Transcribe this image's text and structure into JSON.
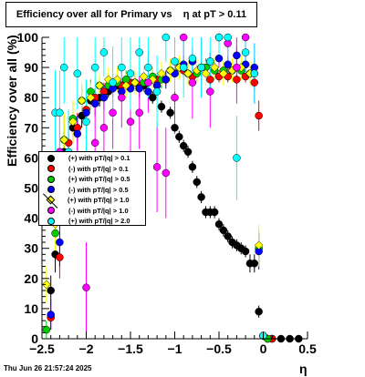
{
  "title": "Efficiency over all for Primary vs    η at pT > 0.11",
  "timestamp": "Thu Jun 26 21:57:24 2025",
  "chart_data": {
    "type": "scatter",
    "title": "Efficiency over all for Primary vs    η at pT > 0.11",
    "xlabel": "η",
    "ylabel": "Efficiency over all (%)",
    "xlim": [
      -2.5,
      0.5
    ],
    "ylim": [
      0,
      100
    ],
    "xticks": [
      "−2.5",
      "−2",
      "−1.5",
      "−1",
      "−0.5",
      "0",
      "0.5"
    ],
    "yticks": [
      "0",
      "10",
      "20",
      "30",
      "40",
      "50",
      "60",
      "70",
      "80",
      "90",
      "100"
    ],
    "legend_position": "middle-left",
    "series": [
      {
        "name": "(+) with pT/|q| > 0.1",
        "color": "#000000",
        "marker": "circle",
        "x": [
          -2.4,
          -2.35,
          -2.25,
          -2.15,
          -2.05,
          -1.95,
          -1.85,
          -1.75,
          -1.65,
          -1.55,
          -1.45,
          -1.35,
          -1.25,
          -1.15,
          -1.05,
          -1.0,
          -0.95,
          -0.9,
          -0.85,
          -0.8,
          -0.75,
          -0.7,
          -0.65,
          -0.6,
          -0.55,
          -0.5,
          -0.45,
          -0.4,
          -0.35,
          -0.3,
          -0.25,
          -0.2,
          -0.15,
          -0.1,
          -0.05,
          0.0,
          0.05,
          0.1,
          0.2,
          0.3,
          0.4
        ],
        "y": [
          16,
          28,
          62,
          70,
          74,
          79,
          80,
          82,
          84,
          85,
          85,
          84,
          80,
          77,
          75,
          70,
          67,
          64,
          62,
          57,
          52,
          47,
          42,
          42,
          42,
          38,
          36,
          34,
          32,
          31,
          30,
          29,
          25,
          25,
          9,
          1,
          0,
          0,
          0,
          0,
          0
        ],
        "err": [
          5,
          6,
          7,
          5,
          4,
          3,
          3,
          2,
          2,
          2,
          2,
          2,
          2,
          2,
          2,
          2,
          2,
          2,
          2,
          2,
          2,
          2,
          2,
          2,
          2,
          2,
          2,
          2,
          2,
          2,
          2,
          2,
          3,
          3,
          2,
          1,
          0,
          0,
          0,
          0,
          0
        ]
      },
      {
        "name": "(-) with pT/|q| > 0.1",
        "color": "#ff0000",
        "marker": "circle",
        "x": [
          -2.4,
          -2.3,
          -2.2,
          -2.1,
          -2.0,
          -1.9,
          -1.8,
          -1.7,
          -1.6,
          -1.5,
          -1.4,
          -1.3,
          -1.2,
          -1.1,
          -1.0,
          -0.9,
          -0.8,
          -0.7,
          -0.6,
          -0.5,
          -0.4,
          -0.3,
          -0.2,
          -0.1,
          -0.05,
          0.0,
          0.05,
          0.1
        ],
        "y": [
          7,
          27,
          65,
          70,
          76,
          80,
          82,
          84,
          84,
          85,
          84,
          85,
          86,
          86,
          88,
          89,
          87,
          90,
          86,
          87,
          87,
          86,
          87,
          85,
          74,
          1,
          0,
          0
        ],
        "err": [
          4,
          7,
          7,
          5,
          4,
          3,
          3,
          3,
          2,
          2,
          2,
          2,
          2,
          2,
          2,
          2,
          2,
          2,
          2,
          2,
          2,
          2,
          2,
          3,
          5,
          1,
          0,
          0
        ]
      },
      {
        "name": "(+) with pT/|q| > 0.5",
        "color": "#00cc00",
        "marker": "circle",
        "x": [
          -2.45,
          -2.35,
          -2.25,
          -2.15,
          -2.05,
          -1.95,
          -1.85,
          -1.75,
          -1.65,
          -1.55,
          -1.45,
          -1.35,
          -1.25,
          -1.15,
          -1.05,
          -0.95,
          -0.85,
          -0.75,
          -0.65,
          -0.55,
          -0.45,
          -0.35,
          -0.25,
          -0.15,
          -0.05,
          0.0,
          0.05
        ],
        "y": [
          3,
          35,
          66,
          73,
          79,
          82,
          84,
          84,
          85,
          86,
          85,
          85,
          87,
          86,
          89,
          90,
          88,
          88,
          90,
          89,
          89,
          89,
          89,
          88,
          30,
          1,
          0
        ],
        "err": [
          3,
          8,
          8,
          6,
          5,
          4,
          3,
          3,
          3,
          3,
          3,
          3,
          3,
          3,
          3,
          3,
          3,
          3,
          3,
          3,
          3,
          3,
          3,
          3,
          6,
          1,
          0
        ]
      },
      {
        "name": "(-) with pT/|q| > 0.5",
        "color": "#0000ff",
        "marker": "circle",
        "x": [
          -2.4,
          -2.3,
          -2.2,
          -2.1,
          -2.0,
          -1.9,
          -1.8,
          -1.7,
          -1.6,
          -1.5,
          -1.4,
          -1.3,
          -1.2,
          -1.1,
          -1.0,
          -0.9,
          -0.8,
          -0.7,
          -0.6,
          -0.5,
          -0.4,
          -0.3,
          -0.2,
          -0.1,
          -0.05,
          0.0
        ],
        "y": [
          8,
          32,
          60,
          68,
          75,
          78,
          80,
          83,
          82,
          83,
          83,
          82,
          84,
          86,
          88,
          91,
          92,
          90,
          92,
          93,
          91,
          94,
          91,
          90,
          29,
          1
        ],
        "err": [
          5,
          8,
          8,
          6,
          5,
          4,
          4,
          3,
          3,
          3,
          3,
          3,
          3,
          3,
          3,
          3,
          3,
          3,
          3,
          3,
          3,
          3,
          3,
          3,
          6,
          1
        ]
      },
      {
        "name": "(+) with pT/|q| > 1.0",
        "color": "#ffff00",
        "marker": "diamond",
        "x": [
          -2.45,
          -2.35,
          -2.25,
          -2.15,
          -2.05,
          -1.95,
          -1.85,
          -1.75,
          -1.65,
          -1.55,
          -1.45,
          -1.35,
          -1.25,
          -1.15,
          -1.05,
          -0.95,
          -0.85,
          -0.75,
          -0.65,
          -0.55,
          -0.45,
          -0.35,
          -0.25,
          -0.15,
          -0.05,
          0.0
        ],
        "y": [
          18,
          38,
          66,
          72,
          79,
          80,
          84,
          86,
          86,
          84,
          85,
          87,
          86,
          88,
          89,
          90,
          88,
          89,
          88,
          90,
          88,
          89,
          90,
          88,
          31,
          1
        ],
        "err": [
          6,
          9,
          9,
          7,
          6,
          5,
          4,
          4,
          4,
          4,
          4,
          4,
          4,
          4,
          4,
          4,
          4,
          4,
          4,
          4,
          4,
          4,
          4,
          4,
          7,
          1
        ]
      },
      {
        "name": "(-) with pT/|q| > 1.0",
        "color": "#ff00ff",
        "marker": "circle",
        "x": [
          -2.3,
          -2.2,
          -2.1,
          -2.0,
          -1.9,
          -1.8,
          -1.7,
          -1.6,
          -1.5,
          -1.4,
          -1.3,
          -1.2,
          -1.1,
          -1.0,
          -0.9,
          -0.8,
          -0.7,
          -0.6,
          -0.5,
          -0.4,
          -0.3,
          -0.2,
          -0.1,
          0.0
        ],
        "y": [
          62,
          60,
          58,
          17,
          65,
          70,
          75,
          80,
          72,
          75,
          85,
          57,
          55,
          80,
          100,
          85,
          90,
          82,
          100,
          98,
          90,
          100,
          88,
          1
        ],
        "err": [
          15,
          14,
          14,
          15,
          14,
          12,
          12,
          10,
          12,
          12,
          10,
          15,
          15,
          12,
          10,
          12,
          10,
          12,
          10,
          10,
          12,
          10,
          10,
          1
        ]
      },
      {
        "name": "(+) with pT/|q| > 2.0",
        "color": "#00ffff",
        "marker": "circle",
        "x": [
          -2.35,
          -2.3,
          -2.25,
          -2.2,
          -2.1,
          -2.0,
          -1.9,
          -1.8,
          -1.7,
          -1.6,
          -1.5,
          -1.4,
          -1.3,
          -1.2,
          -1.1,
          -1.0,
          -0.9,
          -0.8,
          -0.7,
          -0.6,
          -0.5,
          -0.4,
          -0.3,
          -0.2,
          -0.1,
          0.0
        ],
        "y": [
          75,
          75,
          90,
          62,
          88,
          72,
          90,
          95,
          85,
          90,
          88,
          95,
          90,
          82,
          100,
          92,
          90,
          93,
          90,
          92,
          100,
          100,
          60,
          95,
          88,
          1
        ],
        "err": [
          14,
          14,
          12,
          14,
          12,
          14,
          10,
          8,
          12,
          10,
          12,
          8,
          10,
          12,
          8,
          10,
          10,
          8,
          10,
          10,
          8,
          8,
          14,
          8,
          10,
          1
        ]
      }
    ]
  }
}
